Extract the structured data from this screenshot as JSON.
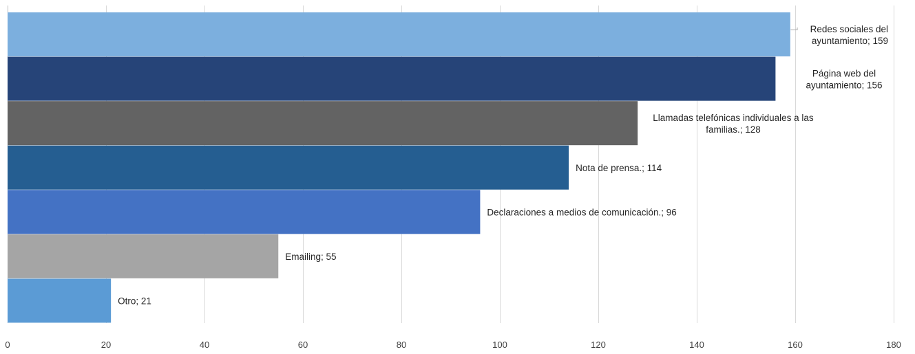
{
  "chart_data": {
    "type": "bar",
    "orientation": "horizontal",
    "title": "",
    "xlabel": "",
    "ylabel": "",
    "xlim": [
      0,
      180
    ],
    "x_ticks": [
      0,
      20,
      40,
      60,
      80,
      100,
      120,
      140,
      160,
      180
    ],
    "grid": true,
    "legend": "none",
    "categories": [
      "Redes sociales del ayuntamiento",
      "Página web del ayuntamiento",
      "Llamadas telefónicas individuales a las familias.",
      "Nota de prensa.",
      "Declaraciones a medios de comunicación.",
      "Emailing",
      "Otro"
    ],
    "values": [
      159,
      156,
      128,
      114,
      96,
      55,
      21
    ],
    "colors": [
      "#7cafde",
      "#264478",
      "#636363",
      "#255e91",
      "#4472c4",
      "#a5a5a5",
      "#5b9bd5"
    ],
    "data_labels": [
      [
        "Redes sociales del",
        "ayuntamiento; 159"
      ],
      [
        "Página web del",
        "ayuntamiento; 156"
      ],
      [
        "Llamadas telefónicas individuales a las",
        "familias.; 128"
      ],
      [
        "Nota de prensa.; 114"
      ],
      [
        "Declaraciones a medios de comunicación.; 96"
      ],
      [
        "Emailing; 55"
      ],
      [
        "Otro; 21"
      ]
    ]
  }
}
